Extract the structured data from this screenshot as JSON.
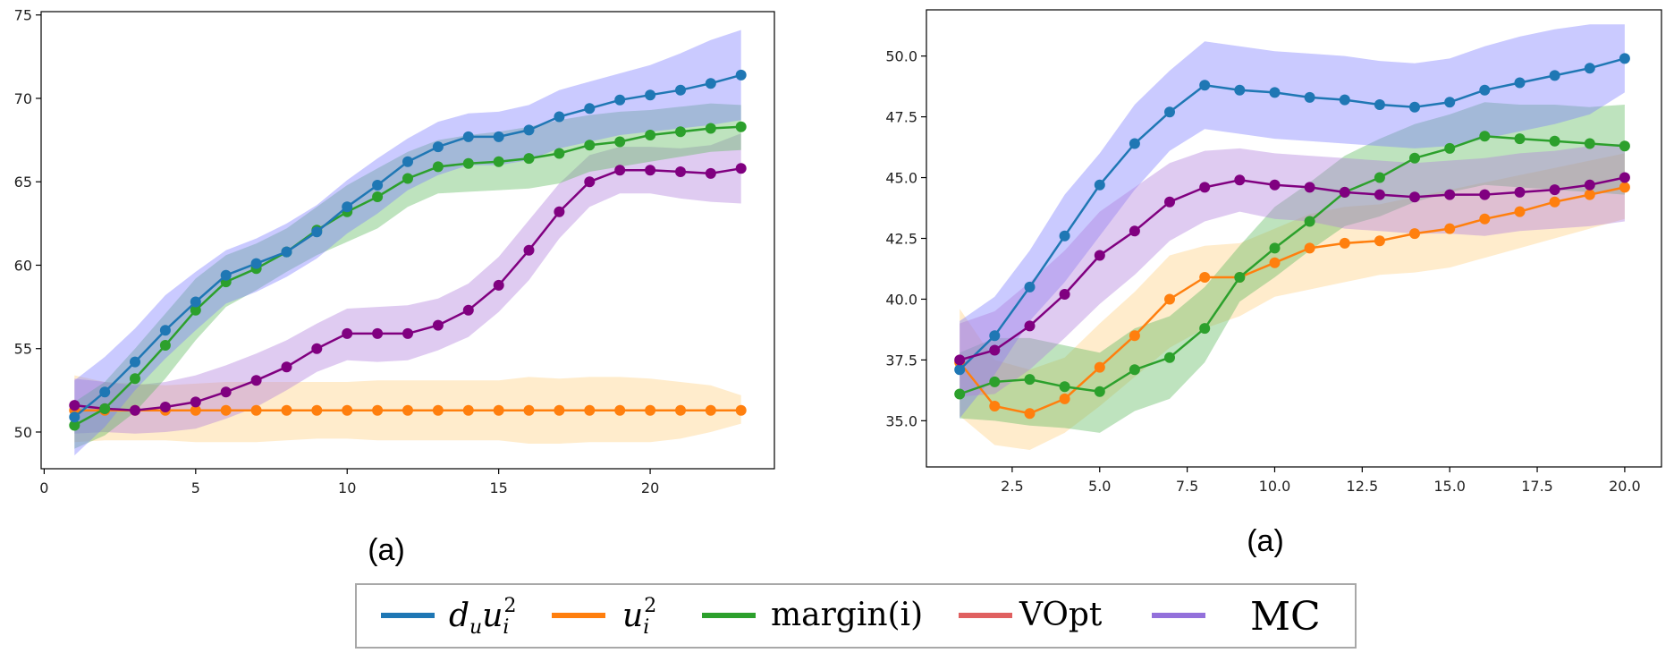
{
  "colors": {
    "du_ui2": "#1f77b4",
    "ui2": "#ff7f0e",
    "margin": "#2ca02c",
    "vopt": "#d62728",
    "mc": "#800080",
    "band_du_ui2": "#7b7bff",
    "band_ui2": "#ffcf80",
    "band_margin": "#5cb85c",
    "band_vopt": "#d64562",
    "band_mc": "#b07cdc"
  },
  "legend": {
    "items": [
      {
        "key": "du_ui2",
        "parts": [
          "d",
          "u",
          "u",
          "i",
          "2"
        ],
        "swatch": "#1f77b4"
      },
      {
        "key": "ui2",
        "parts": [
          "u",
          "i",
          "2"
        ],
        "swatch": "#ff7f0e"
      },
      {
        "key": "margin",
        "label": "margin(i)",
        "swatch": "#2ca02c"
      },
      {
        "key": "vopt",
        "label": "VOpt",
        "swatch": "#e06060"
      },
      {
        "key": "mc",
        "label": "MC",
        "swatch": "#9370db"
      }
    ]
  },
  "chart_data": [
    {
      "type": "line",
      "caption": "(a)",
      "xlim": [
        -0.1,
        24.1
      ],
      "ylim": [
        47.8,
        75.2
      ],
      "xticks": [
        0,
        5,
        10,
        15,
        20
      ],
      "yticks": [
        50,
        55,
        60,
        65,
        70,
        75
      ],
      "series": [
        {
          "key": "ui2",
          "name": "u_i^2",
          "x": [
            1,
            2,
            3,
            4,
            5,
            6,
            7,
            8,
            9,
            10,
            11,
            12,
            13,
            14,
            15,
            16,
            17,
            18,
            19,
            20,
            21,
            22,
            23
          ],
          "values": [
            51.3,
            51.3,
            51.3,
            51.3,
            51.3,
            51.3,
            51.3,
            51.3,
            51.3,
            51.3,
            51.3,
            51.3,
            51.3,
            51.3,
            51.3,
            51.3,
            51.3,
            51.3,
            51.3,
            51.3,
            51.3,
            51.3,
            51.3
          ],
          "lower": [
            49.4,
            49.5,
            49.5,
            49.5,
            49.4,
            49.4,
            49.4,
            49.5,
            49.6,
            49.6,
            49.5,
            49.5,
            49.5,
            49.5,
            49.5,
            49.3,
            49.3,
            49.4,
            49.4,
            49.4,
            49.6,
            50.0,
            50.5
          ],
          "upper": [
            53.4,
            53.0,
            52.9,
            52.8,
            52.9,
            53.0,
            53.0,
            53.0,
            53.0,
            53.0,
            53.1,
            53.1,
            53.1,
            53.1,
            53.1,
            53.3,
            53.2,
            53.3,
            53.3,
            53.2,
            53.0,
            52.8,
            52.2
          ]
        },
        {
          "key": "mc",
          "name": "MC",
          "x": [
            1,
            2,
            3,
            4,
            5,
            6,
            7,
            8,
            9,
            10,
            11,
            12,
            13,
            14,
            15,
            16,
            17,
            18,
            19,
            20,
            21,
            22,
            23
          ],
          "values": [
            51.6,
            51.4,
            51.3,
            51.5,
            51.8,
            52.4,
            53.1,
            53.9,
            55.0,
            55.9,
            55.9,
            55.9,
            56.4,
            57.3,
            58.8,
            60.9,
            63.2,
            65.0,
            65.7,
            65.7,
            65.6,
            65.5,
            65.8
          ],
          "lower": [
            49.9,
            50.0,
            49.9,
            50.0,
            50.2,
            50.8,
            51.5,
            52.5,
            53.6,
            54.3,
            54.2,
            54.3,
            54.9,
            55.7,
            57.2,
            59.1,
            61.6,
            63.5,
            64.3,
            64.3,
            64.0,
            63.8,
            63.7
          ],
          "upper": [
            53.2,
            53.0,
            52.8,
            53.0,
            53.4,
            54.0,
            54.7,
            55.5,
            56.5,
            57.4,
            57.5,
            57.6,
            58.0,
            58.9,
            60.5,
            62.7,
            64.9,
            66.6,
            67.1,
            67.1,
            67.0,
            67.2,
            67.9
          ]
        },
        {
          "key": "margin",
          "name": "margin(i)",
          "x": [
            1,
            2,
            3,
            4,
            5,
            6,
            7,
            8,
            9,
            10,
            11,
            12,
            13,
            14,
            15,
            16,
            17,
            18,
            19,
            20,
            21,
            22,
            23
          ],
          "values": [
            50.4,
            51.4,
            53.2,
            55.2,
            57.3,
            59.0,
            59.8,
            60.8,
            62.1,
            63.2,
            64.1,
            65.2,
            65.9,
            66.1,
            66.2,
            66.4,
            66.7,
            67.2,
            67.4,
            67.8,
            68.0,
            68.2,
            68.3
          ],
          "lower": [
            49.0,
            49.8,
            51.2,
            53.2,
            55.5,
            57.5,
            58.5,
            59.6,
            60.6,
            61.4,
            62.2,
            63.5,
            64.3,
            64.4,
            64.5,
            64.6,
            64.9,
            65.6,
            65.9,
            66.2,
            66.5,
            66.8,
            66.9
          ],
          "upper": [
            51.8,
            53.0,
            55.0,
            57.1,
            59.2,
            60.6,
            61.3,
            62.2,
            63.5,
            64.8,
            65.8,
            66.8,
            67.5,
            67.8,
            68.0,
            68.3,
            68.7,
            69.0,
            69.2,
            69.3,
            69.5,
            69.7,
            69.6
          ]
        },
        {
          "key": "du_ui2",
          "name": "d_u u_i^2",
          "x": [
            1,
            2,
            3,
            4,
            5,
            6,
            7,
            8,
            9,
            10,
            11,
            12,
            13,
            14,
            15,
            16,
            17,
            18,
            19,
            20,
            21,
            22,
            23
          ],
          "values": [
            50.9,
            52.4,
            54.2,
            56.1,
            57.8,
            59.4,
            60.1,
            60.8,
            62.0,
            63.5,
            64.8,
            66.2,
            67.1,
            67.7,
            67.7,
            68.1,
            68.9,
            69.4,
            69.9,
            70.2,
            70.5,
            70.9,
            71.4
          ],
          "lower": [
            48.6,
            50.3,
            52.5,
            54.4,
            56.1,
            57.7,
            58.4,
            59.3,
            60.4,
            61.9,
            63.1,
            64.5,
            65.4,
            66.0,
            66.0,
            66.3,
            67.0,
            67.4,
            67.8,
            68.0,
            68.2,
            68.4,
            68.7
          ],
          "upper": [
            53.1,
            54.5,
            56.2,
            58.2,
            59.6,
            60.9,
            61.6,
            62.5,
            63.6,
            65.1,
            66.4,
            67.6,
            68.6,
            69.1,
            69.2,
            69.6,
            70.5,
            71.0,
            71.5,
            72.0,
            72.7,
            73.5,
            74.1
          ]
        }
      ]
    },
    {
      "type": "line",
      "caption": "(a)",
      "xlim": [
        0.05,
        21.05
      ],
      "ylim": [
        33.1,
        51.9
      ],
      "xticks": [
        2.5,
        5.0,
        7.5,
        10.0,
        12.5,
        15.0,
        17.5,
        20.0
      ],
      "xtick_labels": [
        "2.5",
        "5.0",
        "7.5",
        "10.0",
        "12.5",
        "15.0",
        "17.5",
        "20.0"
      ],
      "yticks": [
        35.0,
        37.5,
        40.0,
        42.5,
        45.0,
        47.5,
        50.0
      ],
      "ytick_labels": [
        "35.0",
        "37.5",
        "40.0",
        "42.5",
        "45.0",
        "47.5",
        "50.0"
      ],
      "series": [
        {
          "key": "ui2",
          "name": "u_i^2",
          "x": [
            1,
            2,
            3,
            4,
            5,
            6,
            7,
            8,
            9,
            10,
            11,
            12,
            13,
            14,
            15,
            16,
            17,
            18,
            19,
            20
          ],
          "values": [
            37.4,
            35.6,
            35.3,
            35.9,
            37.2,
            38.5,
            40.0,
            40.9,
            40.9,
            41.5,
            42.1,
            42.3,
            42.4,
            42.7,
            42.9,
            43.3,
            43.6,
            44.0,
            44.3,
            44.6
          ],
          "lower": [
            35.2,
            34.0,
            33.8,
            34.5,
            35.6,
            36.8,
            38.0,
            38.8,
            39.3,
            40.1,
            40.4,
            40.7,
            41.0,
            41.1,
            41.3,
            41.7,
            42.1,
            42.5,
            42.9,
            43.3
          ],
          "upper": [
            39.6,
            37.5,
            37.1,
            37.6,
            39.0,
            40.3,
            41.8,
            42.2,
            42.3,
            42.9,
            43.5,
            43.8,
            43.9,
            44.2,
            44.5,
            44.8,
            45.1,
            45.4,
            45.7,
            46.0
          ]
        },
        {
          "key": "margin",
          "name": "margin(i)",
          "x": [
            1,
            2,
            3,
            4,
            5,
            6,
            7,
            8,
            9,
            10,
            11,
            12,
            13,
            14,
            15,
            16,
            17,
            18,
            19,
            20
          ],
          "values": [
            36.1,
            36.6,
            36.7,
            36.4,
            36.2,
            37.1,
            37.6,
            38.8,
            40.9,
            42.1,
            43.2,
            44.4,
            45.0,
            45.8,
            46.2,
            46.7,
            46.6,
            46.5,
            46.4,
            46.3
          ],
          "lower": [
            35.1,
            35.0,
            34.8,
            34.7,
            34.5,
            35.4,
            35.9,
            37.4,
            39.9,
            40.9,
            42.0,
            43.0,
            43.4,
            44.0,
            44.4,
            44.7,
            44.6,
            44.5,
            44.4,
            44.3
          ],
          "upper": [
            37.8,
            38.4,
            38.4,
            38.1,
            37.8,
            38.8,
            39.3,
            40.5,
            42.2,
            43.8,
            44.8,
            45.9,
            46.6,
            47.2,
            47.6,
            48.1,
            48.0,
            48.0,
            47.9,
            48.0
          ]
        },
        {
          "key": "du_ui2",
          "name": "d_u u_i^2",
          "x": [
            1,
            2,
            3,
            4,
            5,
            6,
            7,
            8,
            9,
            10,
            11,
            12,
            13,
            14,
            15,
            16,
            17,
            18,
            19,
            20
          ],
          "values": [
            37.1,
            38.5,
            40.5,
            42.6,
            44.7,
            46.4,
            47.7,
            48.8,
            48.6,
            48.5,
            48.3,
            48.2,
            48.0,
            47.9,
            48.1,
            48.6,
            48.9,
            49.2,
            49.5,
            49.9
          ],
          "lower": [
            35.1,
            36.9,
            39.1,
            40.7,
            42.6,
            44.5,
            46.1,
            47.0,
            46.8,
            46.6,
            46.5,
            46.4,
            46.3,
            46.2,
            46.3,
            46.6,
            46.9,
            47.2,
            47.6,
            48.5
          ],
          "upper": [
            39.1,
            40.1,
            42.0,
            44.3,
            46.0,
            48.0,
            49.4,
            50.6,
            50.4,
            50.2,
            50.1,
            50.0,
            49.8,
            49.7,
            49.9,
            50.4,
            50.8,
            51.1,
            51.3,
            51.3
          ]
        },
        {
          "key": "mc",
          "name": "MC",
          "x": [
            1,
            2,
            3,
            4,
            5,
            6,
            7,
            8,
            9,
            10,
            11,
            12,
            13,
            14,
            15,
            16,
            17,
            18,
            19,
            20
          ],
          "values": [
            37.5,
            37.9,
            38.9,
            40.2,
            41.8,
            42.8,
            44.0,
            44.6,
            44.9,
            44.7,
            44.6,
            44.4,
            44.3,
            44.2,
            44.3,
            44.3,
            44.4,
            44.5,
            44.7,
            45.0
          ],
          "lower": [
            36.0,
            36.1,
            37.1,
            38.4,
            39.8,
            41.0,
            42.4,
            43.2,
            43.6,
            43.3,
            43.2,
            42.9,
            42.8,
            42.7,
            42.7,
            42.6,
            42.8,
            42.9,
            43.0,
            43.2
          ],
          "upper": [
            39.0,
            39.5,
            40.7,
            42.0,
            43.6,
            44.6,
            45.6,
            46.1,
            46.2,
            46.0,
            45.9,
            45.8,
            45.7,
            45.6,
            45.7,
            45.8,
            46.0,
            46.1,
            46.3,
            46.4
          ]
        }
      ]
    }
  ]
}
